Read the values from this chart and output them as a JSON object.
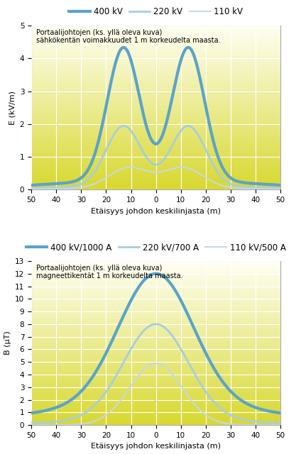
{
  "fig_bg": "#ffffff",
  "chart1": {
    "title_line1": "Portaalijohtojen (ks. yllä oleva kuva)",
    "title_line2": "sähkökentän voimakkuudet 1 m korkeudelta maasta.",
    "ylabel": "E (kV/m)",
    "xlabel": "Etäisyys johdon keskilinjasta (m)",
    "ylim": [
      0,
      5
    ],
    "yticks": [
      0,
      1,
      2,
      3,
      4,
      5
    ],
    "legend_labels": [
      "400 kV",
      "220 kV",
      "110 kV"
    ],
    "colors": [
      "#5ba3c9",
      "#a8cde0",
      "#c8d8e4"
    ],
    "linewidths": [
      3.0,
      2.0,
      1.5
    ],
    "grad_top": "#fffff5",
    "grad_bottom": "#d8d830"
  },
  "chart2": {
    "title_line1": "Portaalijohtojen (ks. yllä oleva kuva)",
    "title_line2": "magneettikentät 1 m korkeudelta maasta.",
    "ylabel": "B (µT)",
    "xlabel": "Etäisyys johdon keskilinjasta (m)",
    "ylim": [
      0,
      13
    ],
    "yticks": [
      0,
      1,
      2,
      3,
      4,
      5,
      6,
      7,
      8,
      9,
      10,
      11,
      12,
      13
    ],
    "legend_labels": [
      "400 kV/1000 A",
      "220 kV/700 A",
      "110 kV/500 A"
    ],
    "colors": [
      "#5ba3c9",
      "#a8cde0",
      "#c8d8e4"
    ],
    "linewidths": [
      3.0,
      2.0,
      1.5
    ],
    "grad_top": "#fffff5",
    "grad_bottom": "#d8d830"
  },
  "xlim": [
    -50,
    50
  ],
  "xtick_positions": [
    -50,
    -40,
    -30,
    -20,
    -10,
    0,
    10,
    20,
    30,
    40,
    50
  ],
  "xtick_labels": [
    "50",
    "40",
    "30",
    "20",
    "10",
    "0",
    "10",
    "20",
    "30",
    "40",
    "50"
  ]
}
